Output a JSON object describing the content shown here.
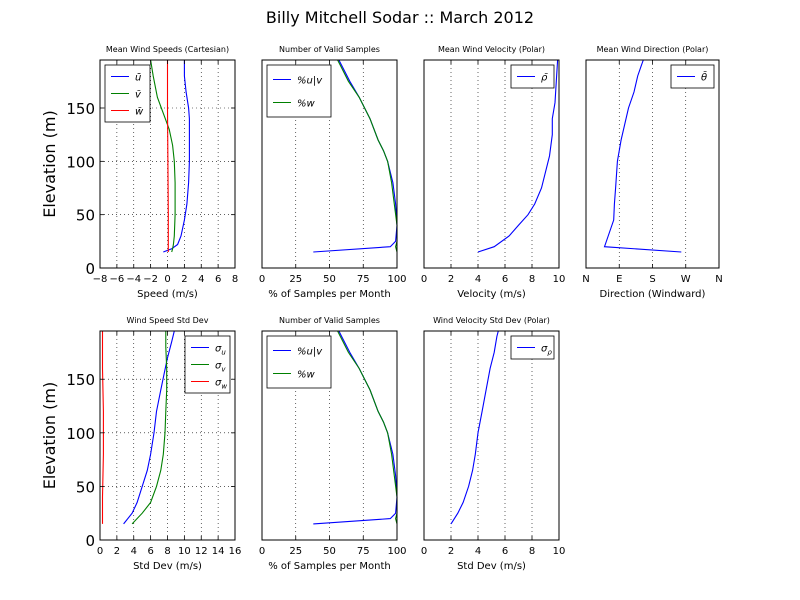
{
  "figure": {
    "title": "Billy Mitchell Sodar :: March 2012"
  },
  "colors": {
    "blue": "#0000ff",
    "green": "#008000",
    "red": "#ff0000"
  },
  "chart_data": [
    {
      "type": "line",
      "title": "Mean Wind Speeds (Cartesian)",
      "xlabel": "Speed (m/s)",
      "ylabel": "Elevation (m)",
      "xlim": [
        -8,
        8
      ],
      "ylim": [
        0,
        195
      ],
      "xticks": [
        -8,
        -6,
        -4,
        -2,
        0,
        2,
        4,
        6,
        8
      ],
      "xticklabels": [
        "−8",
        "−6",
        "−4",
        "−2",
        "0",
        "2",
        "4",
        "6",
        "8"
      ],
      "yticks": [
        0,
        50,
        100,
        150
      ],
      "yticklabels": [
        "0",
        "50",
        "100",
        "150"
      ],
      "grid": "dotted",
      "legend": "upper left",
      "series": [
        {
          "name": "ū",
          "color": "#0000ff",
          "x": [
            -0.5,
            0.5,
            1.2,
            1.6,
            2.0,
            2.3,
            2.5,
            2.6,
            2.6,
            2.6,
            2.5,
            2.2,
            2.0,
            2.0
          ],
          "y": [
            15,
            18,
            22,
            30,
            45,
            60,
            80,
            100,
            120,
            140,
            150,
            165,
            180,
            195
          ]
        },
        {
          "name": "v̄",
          "color": "#008000",
          "x": [
            0.5,
            0.6,
            0.7,
            0.8,
            0.9,
            0.9,
            0.8,
            0.6,
            0.2,
            -0.5,
            -1.2,
            -1.7,
            -2.0
          ],
          "y": [
            15,
            18,
            22,
            30,
            50,
            80,
            100,
            115,
            130,
            145,
            160,
            180,
            195
          ]
        },
        {
          "name": "w̄",
          "color": "#ff0000",
          "x": [
            0.1,
            0.1,
            0.05,
            0.0,
            0.0,
            0.0
          ],
          "y": [
            15,
            50,
            100,
            150,
            180,
            195
          ]
        }
      ]
    },
    {
      "type": "line",
      "title": "Number of Valid Samples",
      "xlabel": "% of Samples per Month",
      "ylabel": "",
      "xlim": [
        0,
        100
      ],
      "ylim": [
        0,
        195
      ],
      "xticks": [
        0,
        25,
        50,
        75,
        100
      ],
      "xticklabels": [
        "0",
        "25",
        "50",
        "75",
        "100"
      ],
      "yticks": [],
      "yticklabels": [],
      "grid": "dotted",
      "legend": "upper left",
      "series": [
        {
          "name": "%u|v",
          "color": "#0000ff",
          "x": [
            38,
            95,
            99,
            100,
            99,
            97,
            93,
            90,
            86,
            80,
            72,
            65,
            59,
            57
          ],
          "y": [
            15,
            20,
            25,
            40,
            60,
            80,
            100,
            110,
            120,
            140,
            160,
            175,
            190,
            195
          ]
        },
        {
          "name": "%w",
          "color": "#008000",
          "x": [
            100,
            99,
            100,
            100,
            98,
            96,
            93,
            90,
            86,
            80,
            72,
            64,
            58,
            56
          ],
          "y": [
            15,
            20,
            25,
            40,
            60,
            80,
            100,
            110,
            120,
            140,
            160,
            175,
            190,
            195
          ]
        }
      ]
    },
    {
      "type": "line",
      "title": "Mean Wind Velocity (Polar)",
      "xlabel": "Velocity (m/s)",
      "ylabel": "",
      "xlim": [
        0,
        10
      ],
      "ylim": [
        0,
        195
      ],
      "xticks": [
        0,
        2,
        4,
        6,
        8,
        10
      ],
      "xticklabels": [
        "0",
        "2",
        "4",
        "6",
        "8",
        "10"
      ],
      "yticks": [],
      "yticklabels": [],
      "grid": "dotted",
      "legend": "upper right",
      "series": [
        {
          "name": "ρ̄",
          "color": "#0000ff",
          "x": [
            4.0,
            5.2,
            6.3,
            7.0,
            7.7,
            8.2,
            8.7,
            9.0,
            9.3,
            9.5,
            9.5,
            9.7,
            9.8,
            9.9
          ],
          "y": [
            15,
            20,
            30,
            40,
            50,
            60,
            75,
            90,
            105,
            125,
            140,
            155,
            175,
            195
          ]
        }
      ]
    },
    {
      "type": "line",
      "title": "Mean Wind Direction (Polar)",
      "xlabel": "Direction (Windward)",
      "ylabel": "",
      "xlim": [
        0,
        360
      ],
      "ylim": [
        0,
        195
      ],
      "xticks": [
        0,
        90,
        180,
        270,
        360
      ],
      "xticklabels": [
        "N",
        "E",
        "S",
        "W",
        "N"
      ],
      "yticks": [],
      "yticklabels": [],
      "grid": "dotted",
      "legend": "upper right",
      "series": [
        {
          "name": "θ̄",
          "color": "#0000ff",
          "x": [
            258,
            50,
            60,
            75,
            77,
            80,
            85,
            95,
            105,
            115,
            130,
            140,
            150,
            155
          ],
          "y": [
            15,
            20,
            30,
            45,
            60,
            75,
            100,
            120,
            135,
            150,
            165,
            180,
            190,
            195
          ]
        }
      ]
    },
    {
      "type": "line",
      "title": "Wind Speed Std Dev",
      "xlabel": "Std Dev (m/s)",
      "ylabel": "Elevation (m)",
      "xlim": [
        0,
        16
      ],
      "ylim": [
        0,
        195
      ],
      "xticks": [
        0,
        2,
        4,
        6,
        8,
        10,
        12,
        14,
        16
      ],
      "xticklabels": [
        "0",
        "2",
        "4",
        "6",
        "8",
        "10",
        "12",
        "14",
        "16"
      ],
      "yticks": [
        0,
        50,
        100,
        150
      ],
      "yticklabels": [
        "0",
        "50",
        "100",
        "150"
      ],
      "grid": "dotted",
      "legend": "upper right",
      "series": [
        {
          "name": "σu",
          "color": "#0000ff",
          "x": [
            2.8,
            3.8,
            4.4,
            5.0,
            5.6,
            6.0,
            6.4,
            6.7,
            7.2,
            7.6,
            8.0,
            8.5,
            8.8
          ],
          "y": [
            15,
            25,
            35,
            50,
            65,
            80,
            100,
            120,
            140,
            155,
            170,
            185,
            195
          ]
        },
        {
          "name": "σv",
          "color": "#008000",
          "x": [
            3.8,
            5.0,
            6.0,
            6.7,
            7.2,
            7.5,
            7.7,
            7.8,
            7.9,
            7.9,
            7.8,
            7.8
          ],
          "y": [
            15,
            25,
            35,
            50,
            65,
            80,
            100,
            120,
            140,
            160,
            180,
            195
          ]
        },
        {
          "name": "σw",
          "color": "#ff0000",
          "x": [
            0.3,
            0.3,
            0.4,
            0.4,
            0.3,
            0.3
          ],
          "y": [
            15,
            40,
            80,
            120,
            160,
            195
          ]
        }
      ]
    },
    {
      "type": "line",
      "title": "Number of Valid Samples",
      "xlabel": "% of Samples per Month",
      "ylabel": "",
      "xlim": [
        0,
        100
      ],
      "ylim": [
        0,
        195
      ],
      "xticks": [
        0,
        25,
        50,
        75,
        100
      ],
      "xticklabels": [
        "0",
        "25",
        "50",
        "75",
        "100"
      ],
      "yticks": [],
      "yticklabels": [],
      "grid": "dotted",
      "legend": "upper left",
      "series": [
        {
          "name": "%u|v",
          "color": "#0000ff",
          "x": [
            38,
            95,
            99,
            100,
            99,
            97,
            93,
            90,
            86,
            80,
            72,
            65,
            59,
            57
          ],
          "y": [
            15,
            20,
            25,
            40,
            60,
            80,
            100,
            110,
            120,
            140,
            160,
            175,
            190,
            195
          ]
        },
        {
          "name": "%w",
          "color": "#008000",
          "x": [
            100,
            99,
            100,
            100,
            98,
            96,
            93,
            90,
            86,
            80,
            72,
            64,
            58,
            56
          ],
          "y": [
            15,
            20,
            25,
            40,
            60,
            80,
            100,
            110,
            120,
            140,
            160,
            175,
            190,
            195
          ]
        }
      ]
    },
    {
      "type": "line",
      "title": "Wind Velocity Std Dev (Polar)",
      "xlabel": "Std Dev (m/s)",
      "ylabel": "",
      "xlim": [
        0,
        10
      ],
      "ylim": [
        0,
        195
      ],
      "xticks": [
        0,
        2,
        4,
        6,
        8,
        10
      ],
      "xticklabels": [
        "0",
        "2",
        "4",
        "6",
        "8",
        "10"
      ],
      "yticks": [],
      "yticklabels": [],
      "grid": "dotted",
      "legend": "upper right",
      "series": [
        {
          "name": "σρ",
          "color": "#0000ff",
          "x": [
            2.0,
            2.5,
            2.9,
            3.3,
            3.6,
            3.8,
            4.0,
            4.3,
            4.6,
            4.9,
            5.2,
            5.4,
            5.5
          ],
          "y": [
            15,
            25,
            35,
            50,
            65,
            80,
            100,
            120,
            140,
            160,
            175,
            190,
            195
          ]
        }
      ]
    }
  ]
}
